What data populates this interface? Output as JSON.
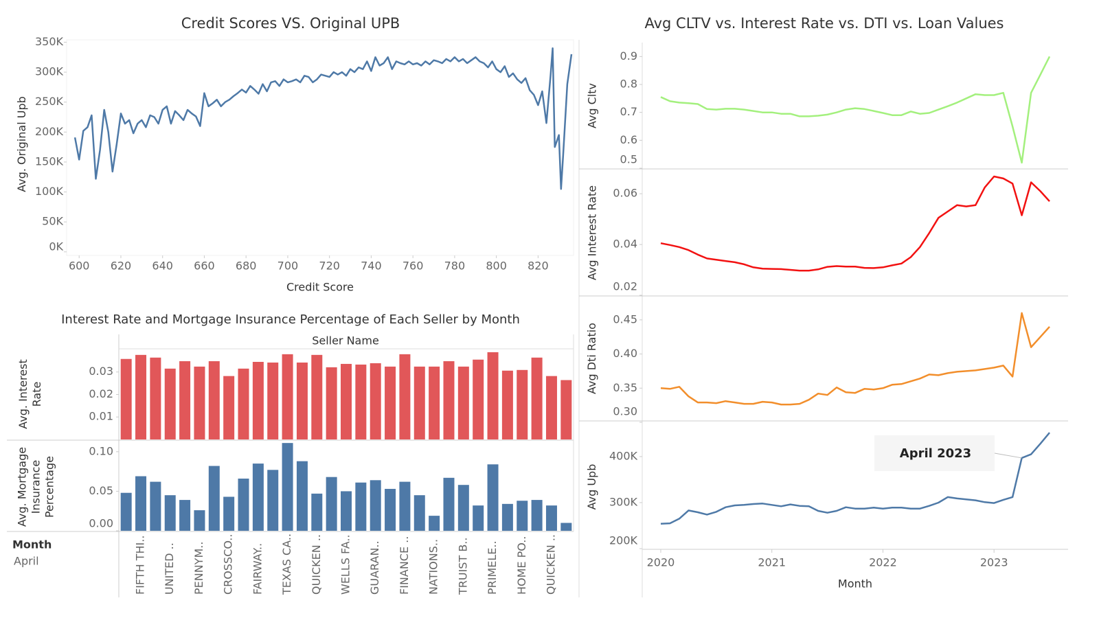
{
  "chart_data": [
    {
      "type": "line",
      "title": "Credit Scores VS. Original UPB",
      "xlabel": "Credit Score",
      "ylabel": "Avg. Original Upb",
      "color": "#4e79a7",
      "x": [
        598,
        600,
        602,
        604,
        606,
        608,
        610,
        612,
        614,
        616,
        618,
        620,
        622,
        624,
        626,
        628,
        630,
        632,
        634,
        636,
        638,
        640,
        642,
        644,
        646,
        648,
        650,
        652,
        654,
        656,
        658,
        660,
        662,
        664,
        666,
        668,
        670,
        672,
        674,
        676,
        678,
        680,
        682,
        684,
        686,
        688,
        690,
        692,
        694,
        696,
        698,
        700,
        702,
        704,
        706,
        708,
        710,
        712,
        714,
        716,
        718,
        720,
        722,
        724,
        726,
        728,
        730,
        732,
        734,
        736,
        738,
        740,
        742,
        744,
        746,
        748,
        750,
        752,
        754,
        756,
        758,
        760,
        762,
        764,
        766,
        768,
        770,
        772,
        774,
        776,
        778,
        780,
        782,
        784,
        786,
        788,
        790,
        792,
        794,
        796,
        798,
        800,
        802,
        804,
        806,
        808,
        810,
        812,
        814,
        816,
        818,
        820,
        822,
        824,
        826,
        827,
        828,
        830,
        831,
        832,
        834,
        836
      ],
      "values": [
        191000,
        154000,
        202000,
        208000,
        228000,
        122000,
        170000,
        237000,
        200000,
        134000,
        180000,
        231000,
        214000,
        220000,
        198000,
        214000,
        220000,
        208000,
        228000,
        225000,
        214000,
        237000,
        243000,
        214000,
        235000,
        228000,
        220000,
        237000,
        231000,
        226000,
        210000,
        265000,
        243000,
        248000,
        254000,
        243000,
        250000,
        254000,
        260000,
        265000,
        271000,
        266000,
        277000,
        271000,
        264000,
        280000,
        268000,
        283000,
        285000,
        277000,
        288000,
        283000,
        285000,
        288000,
        283000,
        294000,
        292000,
        283000,
        288000,
        296000,
        294000,
        292000,
        300000,
        296000,
        300000,
        294000,
        305000,
        300000,
        308000,
        305000,
        318000,
        302000,
        325000,
        311000,
        315000,
        325000,
        305000,
        318000,
        315000,
        313000,
        318000,
        313000,
        315000,
        311000,
        318000,
        313000,
        320000,
        318000,
        315000,
        322000,
        318000,
        325000,
        318000,
        322000,
        315000,
        320000,
        325000,
        318000,
        315000,
        308000,
        318000,
        305000,
        300000,
        310000,
        292000,
        298000,
        288000,
        282000,
        290000,
        270000,
        262000,
        245000,
        268000,
        215000,
        295000,
        340000,
        175000,
        195000,
        105000,
        160000,
        280000,
        330000
      ],
      "xlim": [
        594,
        837
      ],
      "xticks": [
        600,
        620,
        640,
        660,
        680,
        700,
        720,
        740,
        760,
        780,
        800,
        820
      ],
      "ylim": [
        -6000,
        354000
      ],
      "yticks": [
        {
          "value": 0,
          "label": "0K"
        },
        {
          "value": 50000,
          "label": "50K"
        },
        {
          "value": 100000,
          "label": "100K"
        },
        {
          "value": 150000,
          "label": "150K"
        },
        {
          "value": 200000,
          "label": "200K"
        },
        {
          "value": 250000,
          "label": "250K"
        },
        {
          "value": 300000,
          "label": "300K"
        },
        {
          "value": 350000,
          "label": "350K"
        }
      ]
    },
    {
      "type": "bar",
      "title": "Interest Rate and Mortgage Insurance Percentage of Each Seller by Month",
      "header": "Seller Name",
      "row_header": "Month",
      "row_value": "April",
      "categories": [
        null,
        "FIFTH THI..",
        null,
        "UNITED ..",
        null,
        "PENNYM..",
        null,
        "CROSSCO..",
        null,
        "FAIRWAY..",
        null,
        "TEXAS CA..",
        null,
        "QUICKEN ..",
        null,
        "WELLS FA..",
        null,
        "GUARAN..",
        null,
        "FINANCE ..",
        null,
        "NATIONS..",
        null,
        "TRUIST B..",
        null,
        "PRIMELE..",
        null,
        "HOME PO..",
        null,
        "QUICKEN ..",
        null
      ],
      "panels": [
        {
          "ylabel": "Avg. Interest Rate",
          "color": "#e15759",
          "ylim": [
            0,
            0.0403
          ],
          "yticks": [
            0.01,
            0.02,
            0.03
          ],
          "values": [
            0.0358,
            0.0376,
            0.0364,
            0.0315,
            0.0348,
            0.0324,
            0.0348,
            0.0282,
            0.0315,
            0.0345,
            0.0342,
            0.0379,
            0.0342,
            0.0376,
            0.0321,
            0.0336,
            0.0333,
            0.0339,
            0.0324,
            0.0379,
            0.0324,
            0.0324,
            0.0348,
            0.0324,
            0.0355,
            0.0388,
            0.0306,
            0.0309,
            0.0364,
            0.0282,
            0.0264
          ]
        },
        {
          "ylabel": "Avg. Mortgage Insurance Percentage",
          "color": "#4e79a7",
          "ylim": [
            0,
            0.112
          ],
          "yticks": [
            {
              "value": 0,
              "label": "0.00"
            },
            0.05,
            {
              "value": 0.1,
              "label": "0.10"
            }
          ],
          "values": [
            0.048,
            0.069,
            0.062,
            0.045,
            0.039,
            0.026,
            0.082,
            0.043,
            0.066,
            0.085,
            0.077,
            0.111,
            0.088,
            0.047,
            0.068,
            0.05,
            0.061,
            0.064,
            0.053,
            0.062,
            0.045,
            0.019,
            0.067,
            0.058,
            0.032,
            0.084,
            0.034,
            0.038,
            0.039,
            0.032,
            0.01
          ]
        }
      ]
    },
    {
      "type": "line",
      "title": "Avg CLTV vs. Interest Rate vs. DTI vs. Loan Values",
      "xlabel": "Month",
      "x": [
        "2020-01",
        "2020-02",
        "2020-03",
        "2020-04",
        "2020-05",
        "2020-06",
        "2020-07",
        "2020-08",
        "2020-09",
        "2020-10",
        "2020-11",
        "2020-12",
        "2021-01",
        "2021-02",
        "2021-03",
        "2021-04",
        "2021-05",
        "2021-06",
        "2021-07",
        "2021-08",
        "2021-09",
        "2021-10",
        "2021-11",
        "2021-12",
        "2022-01",
        "2022-02",
        "2022-03",
        "2022-04",
        "2022-05",
        "2022-06",
        "2022-07",
        "2022-08",
        "2022-09",
        "2022-10",
        "2022-11",
        "2022-12",
        "2023-01",
        "2023-02",
        "2023-03",
        "2023-04",
        "2023-05",
        "2023-06",
        "2023-07"
      ],
      "xlim": [
        "2019-11",
        "2023-09"
      ],
      "xticks": [
        {
          "value": "2020-01",
          "label": "2020"
        },
        {
          "value": "2021-01",
          "label": "2021"
        },
        {
          "value": "2022-01",
          "label": "2022"
        },
        {
          "value": "2023-01",
          "label": "2023"
        }
      ],
      "panels": [
        {
          "ylabel": "Avg Cltv",
          "color": "#a3f07d",
          "ylim": [
            0.5,
            0.95
          ],
          "yticks": [
            0.5,
            0.6,
            0.7,
            0.8,
            0.9
          ],
          "values": [
            0.755,
            0.74,
            0.735,
            0.733,
            0.73,
            0.712,
            0.71,
            0.713,
            0.713,
            0.71,
            0.705,
            0.7,
            0.7,
            0.695,
            0.695,
            0.686,
            0.686,
            0.688,
            0.692,
            0.7,
            0.71,
            0.715,
            0.712,
            0.705,
            0.698,
            0.69,
            0.69,
            0.703,
            0.695,
            0.698,
            0.71,
            0.722,
            0.735,
            0.75,
            0.765,
            0.762,
            0.762,
            0.77,
            0.65,
            0.52,
            0.77,
            0.835,
            0.9
          ]
        },
        {
          "ylabel": "Avg Interest Rate",
          "color": "#f21111",
          "ylim": [
            0.02,
            0.0695
          ],
          "yticks": [
            0.02,
            0.04,
            0.06
          ],
          "values": [
            0.0405,
            0.0398,
            0.039,
            0.0378,
            0.036,
            0.0345,
            0.034,
            0.0335,
            0.033,
            0.0322,
            0.031,
            0.0305,
            0.0304,
            0.0303,
            0.03,
            0.0297,
            0.0297,
            0.0302,
            0.0312,
            0.0315,
            0.0313,
            0.0313,
            0.0308,
            0.0307,
            0.031,
            0.0318,
            0.0325,
            0.035,
            0.039,
            0.0445,
            0.0505,
            0.053,
            0.0555,
            0.055,
            0.0555,
            0.0625,
            0.0668,
            0.066,
            0.064,
            0.0515,
            0.0645,
            0.061,
            0.057
          ]
        },
        {
          "ylabel": "Avg Dti Ratio",
          "color": "#f28e2b",
          "ylim": [
            0.303,
            0.484
          ],
          "yticks": [
            {
              "value": 0.3,
              "label": "0.30"
            },
            0.35,
            {
              "value": 0.4,
              "label": "0.40"
            },
            0.45
          ],
          "values": [
            0.35,
            0.349,
            0.352,
            0.338,
            0.329,
            0.329,
            0.328,
            0.331,
            0.329,
            0.327,
            0.327,
            0.33,
            0.329,
            0.326,
            0.326,
            0.327,
            0.333,
            0.342,
            0.34,
            0.351,
            0.344,
            0.343,
            0.349,
            0.348,
            0.35,
            0.355,
            0.356,
            0.36,
            0.364,
            0.37,
            0.369,
            0.372,
            0.374,
            0.375,
            0.376,
            0.378,
            0.38,
            0.383,
            0.367,
            0.46,
            0.41,
            0.425,
            0.44
          ]
        },
        {
          "ylabel": "Avg Upb",
          "color": "#4e79a7",
          "ylim": [
            198500,
            470000
          ],
          "yticks": [
            {
              "value": 200000,
              "label": "200K"
            },
            {
              "value": 300000,
              "label": "300K"
            },
            {
              "value": 400000,
              "label": "400K"
            }
          ],
          "values": [
            254000,
            255000,
            265000,
            283000,
            279000,
            274000,
            280000,
            290000,
            294000,
            295000,
            297000,
            298000,
            295000,
            292000,
            296000,
            293000,
            292000,
            282000,
            278000,
            282000,
            290000,
            287000,
            287000,
            289000,
            287000,
            289000,
            289000,
            287000,
            287000,
            293000,
            300000,
            312000,
            309000,
            307000,
            305000,
            301000,
            299000,
            306000,
            312000,
            397000,
            405000,
            428000,
            452000
          ],
          "annotation": {
            "label": "April 2023",
            "x": "2023-04"
          }
        }
      ]
    }
  ]
}
